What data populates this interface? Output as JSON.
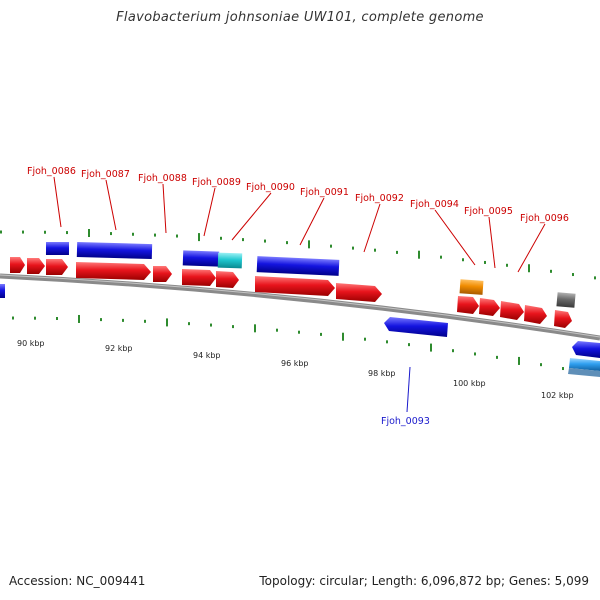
{
  "title": "Flavobacterium johnsoniae UW101, complete genome",
  "accession": "Accession: NC_009441",
  "summary": "Topology: circular; Length: 6,096,872 bp; Genes: 5,099",
  "colors": {
    "forward": "#e8141c",
    "reverse": "#1414e0",
    "label_forward": "#cc0000",
    "label_reverse": "#1a1acc",
    "tick": "#2e8b2e",
    "backbone": "#888888",
    "cyan": "#20c8d0",
    "orange": "#f08c00",
    "gray": "#6a6a6a",
    "lightblue": "#30a0f0"
  },
  "kbp_labels": [
    "90 kbp",
    "92 kbp",
    "94 kbp",
    "96 kbp",
    "98 kbp",
    "100 kbp",
    "102 kbp"
  ],
  "gene_labels": [
    "Fjoh_0086",
    "Fjoh_0087",
    "Fjoh_0088",
    "Fjoh_0089",
    "Fjoh_0090",
    "Fjoh_0091",
    "Fjoh_0092",
    "Fjoh_0094",
    "Fjoh_0095",
    "Fjoh_0096",
    "Fjoh_0093"
  ]
}
